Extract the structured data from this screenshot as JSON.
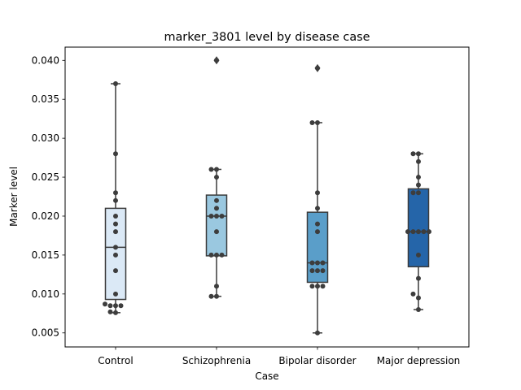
{
  "chart_data": {
    "type": "box",
    "title": "marker_3801 level by disease case",
    "xlabel": "Case",
    "ylabel": "Marker level",
    "ylim": [
      0.0032,
      0.0417
    ],
    "yticks": [
      0.005,
      0.01,
      0.015,
      0.02,
      0.025,
      0.03,
      0.035,
      0.04
    ],
    "ytick_labels": [
      "0.005",
      "0.010",
      "0.015",
      "0.020",
      "0.025",
      "0.030",
      "0.035",
      "0.040"
    ],
    "grid": false,
    "categories": [
      "Control",
      "Schizophrenia",
      "Bipolar disorder",
      "Major depression"
    ],
    "boxes": [
      {
        "category": "Control",
        "color": "#dbe9f6",
        "q1": 0.0093,
        "median": 0.016,
        "q3": 0.021,
        "whisker_low": 0.0076,
        "whisker_high": 0.037,
        "outliers": []
      },
      {
        "category": "Schizophrenia",
        "color": "#9ac8e0",
        "q1": 0.0149,
        "median": 0.02,
        "q3": 0.0227,
        "whisker_low": 0.0097,
        "whisker_high": 0.026,
        "outliers": [
          0.04
        ]
      },
      {
        "category": "Bipolar disorder",
        "color": "#5a9ec9",
        "q1": 0.0115,
        "median": 0.014,
        "q3": 0.0205,
        "whisker_low": 0.005,
        "whisker_high": 0.032,
        "outliers": [
          0.039
        ]
      },
      {
        "category": "Major depression",
        "color": "#2565a9",
        "q1": 0.0135,
        "median": 0.018,
        "q3": 0.0235,
        "whisker_low": 0.008,
        "whisker_high": 0.028,
        "outliers": []
      }
    ],
    "points": [
      {
        "category": "Control",
        "values": [
          0.037,
          0.028,
          0.023,
          0.022,
          0.02,
          0.019,
          0.018,
          0.016,
          0.015,
          0.013,
          0.01,
          0.0087,
          0.0085,
          0.0085,
          0.0085,
          0.0077,
          0.0076
        ]
      },
      {
        "category": "Schizophrenia",
        "values": [
          0.04,
          0.026,
          0.026,
          0.025,
          0.022,
          0.021,
          0.02,
          0.02,
          0.02,
          0.018,
          0.015,
          0.015,
          0.015,
          0.011,
          0.0097,
          0.0097
        ]
      },
      {
        "category": "Bipolar disorder",
        "values": [
          0.039,
          0.032,
          0.032,
          0.023,
          0.021,
          0.019,
          0.018,
          0.014,
          0.014,
          0.014,
          0.013,
          0.013,
          0.013,
          0.011,
          0.011,
          0.011,
          0.005
        ]
      },
      {
        "category": "Major depression",
        "values": [
          0.028,
          0.028,
          0.027,
          0.025,
          0.024,
          0.023,
          0.023,
          0.018,
          0.018,
          0.018,
          0.018,
          0.018,
          0.015,
          0.012,
          0.01,
          0.0095,
          0.008
        ]
      }
    ]
  }
}
